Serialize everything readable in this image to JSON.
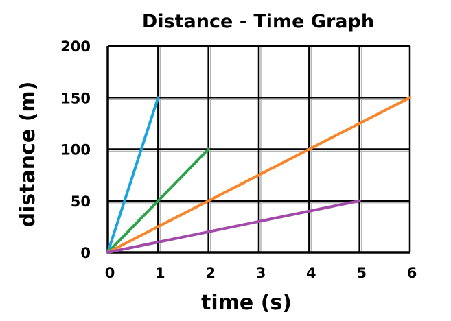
{
  "chart_data": {
    "type": "line",
    "title": "Distance - Time Graph",
    "xlabel": "time (s)",
    "ylabel": "distance (m)",
    "xlim": [
      0,
      6
    ],
    "ylim": [
      0,
      200
    ],
    "xticks": [
      0,
      1,
      2,
      3,
      4,
      5,
      6
    ],
    "yticks": [
      0,
      50,
      100,
      150,
      200
    ],
    "grid": true,
    "series": [
      {
        "color": "#1ba3de",
        "points": [
          [
            0,
            0
          ],
          [
            1,
            150
          ]
        ]
      },
      {
        "color": "#2ca24a",
        "points": [
          [
            0,
            0
          ],
          [
            2,
            100
          ]
        ]
      },
      {
        "color": "#f7862a",
        "points": [
          [
            0,
            0
          ],
          [
            6,
            150
          ]
        ]
      },
      {
        "color": "#a14aa8",
        "points": [
          [
            0,
            0
          ],
          [
            5,
            50
          ]
        ]
      }
    ]
  }
}
